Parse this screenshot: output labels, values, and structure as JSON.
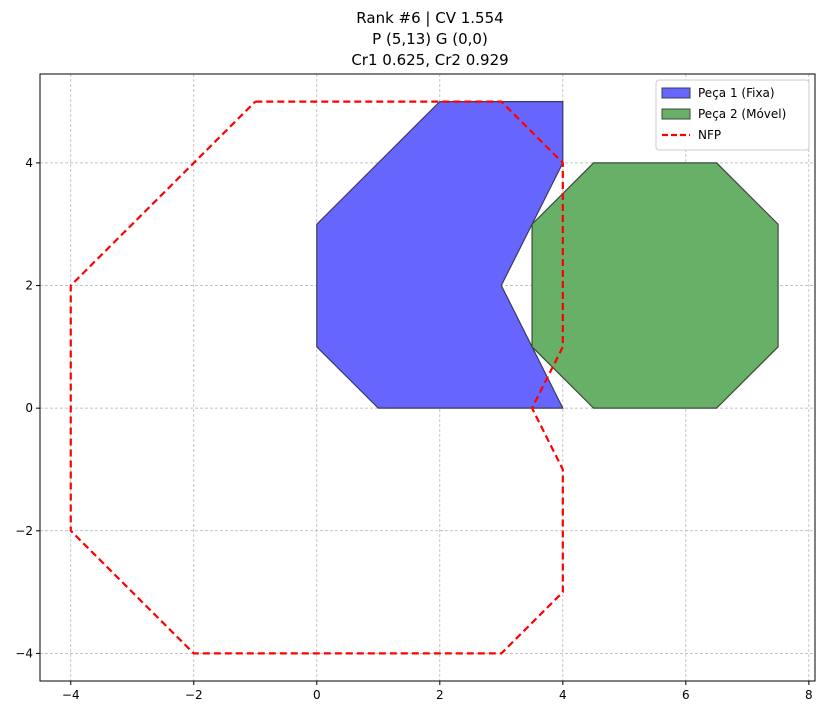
{
  "chart_data": {
    "type": "polygon",
    "title_lines": [
      "Rank #6 | CV 1.554",
      "P (5,13) G (0,0)",
      "Cr1 0.625, Cr2 0.929"
    ],
    "xlim": [
      -4.5,
      8.1
    ],
    "ylim": [
      -4.45,
      5.45
    ],
    "xticks": [
      -4,
      -2,
      0,
      2,
      4,
      6,
      8
    ],
    "xtick_labels": [
      "−4",
      "−2",
      "0",
      "2",
      "4",
      "6",
      "8"
    ],
    "yticks": [
      -4,
      -2,
      0,
      2,
      4
    ],
    "ytick_labels": [
      "−4",
      "−2",
      "0",
      "2",
      "4"
    ],
    "grid": true,
    "legend_position": "top-right",
    "series": [
      {
        "name": "Peça 1 (Fixa)",
        "kind": "filled-polygon",
        "fill": "#6666ff",
        "stroke": "#3b3b5c",
        "points": [
          [
            0,
            1
          ],
          [
            0,
            3
          ],
          [
            2,
            5
          ],
          [
            4,
            5
          ],
          [
            4,
            4
          ],
          [
            3,
            2
          ],
          [
            4,
            0
          ],
          [
            1,
            0
          ]
        ]
      },
      {
        "name": "Peça 2 (Móvel)",
        "kind": "filled-polygon",
        "fill": "#68b068",
        "stroke": "#3b4a3b",
        "points": [
          [
            4.5,
            0
          ],
          [
            6.5,
            0
          ],
          [
            7.5,
            1
          ],
          [
            7.5,
            3
          ],
          [
            6.5,
            4
          ],
          [
            4.5,
            4
          ],
          [
            3.5,
            3
          ],
          [
            3.5,
            1
          ]
        ]
      },
      {
        "name": "NFP",
        "kind": "dashed-line",
        "stroke": "#ff0000",
        "points": [
          [
            -1,
            5
          ],
          [
            3,
            5
          ],
          [
            4,
            4
          ],
          [
            4,
            1
          ],
          [
            3.5,
            0
          ],
          [
            4,
            -1
          ],
          [
            4,
            -3
          ],
          [
            3,
            -4
          ],
          [
            -2,
            -4
          ],
          [
            -4,
            -2
          ],
          [
            -4,
            2
          ],
          [
            -1,
            5
          ]
        ]
      }
    ]
  }
}
